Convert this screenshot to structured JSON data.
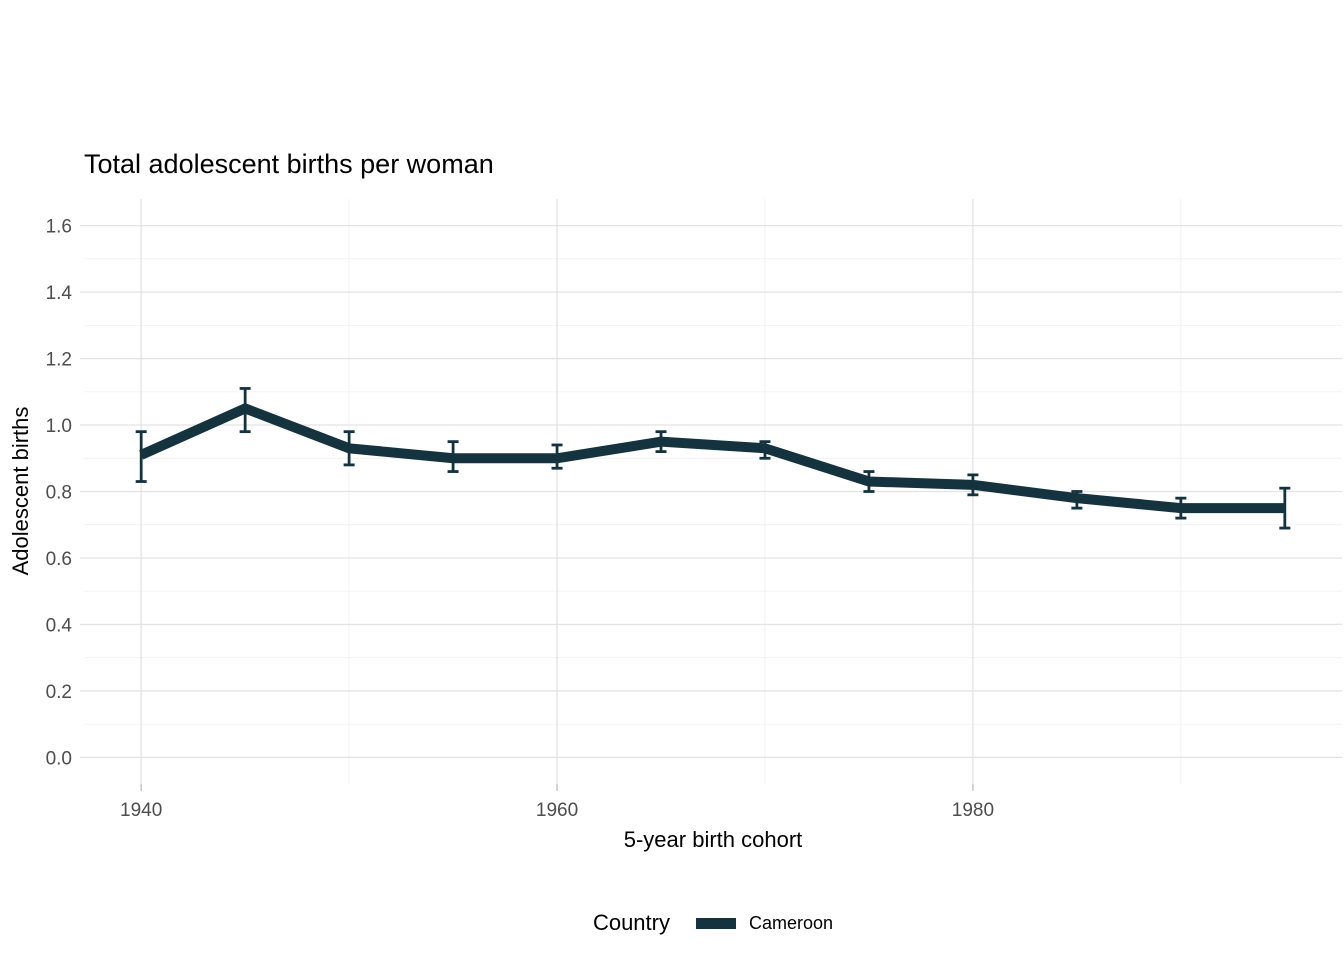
{
  "style": {
    "background": "#ffffff",
    "line_color": "#14333f",
    "grid_major_color": "#e3e3e3",
    "grid_minor_color": "#f1f1f1",
    "tick_mark_color": "#c6c6c6",
    "tick_label_color": "#4d4d4d",
    "title_color": "#000000"
  },
  "chart_data": {
    "type": "line",
    "title": "Total adolescent births per woman",
    "xlabel": "5-year birth cohort",
    "ylabel": "Adolescent births",
    "legend_title": "Country",
    "legend_position": "bottom",
    "grid": true,
    "error_bars": true,
    "x": [
      1940,
      1945,
      1950,
      1955,
      1960,
      1965,
      1970,
      1975,
      1980,
      1985,
      1990,
      1995
    ],
    "series": [
      {
        "name": "Cameroon",
        "color": "#14333f",
        "values": [
          0.91,
          1.05,
          0.93,
          0.9,
          0.9,
          0.95,
          0.93,
          0.83,
          0.82,
          0.78,
          0.75,
          0.75
        ],
        "ci_lower": [
          0.83,
          0.98,
          0.88,
          0.86,
          0.87,
          0.92,
          0.9,
          0.8,
          0.79,
          0.75,
          0.72,
          0.69
        ],
        "ci_upper": [
          0.98,
          1.11,
          0.98,
          0.95,
          0.94,
          0.98,
          0.95,
          0.86,
          0.85,
          0.8,
          0.78,
          0.81
        ]
      }
    ],
    "xlim": [
      1940,
      1995
    ],
    "ylim": [
      0,
      1.6
    ],
    "x_range_padded": [
      1937.25,
      1997.75
    ],
    "y_range_padded": [
      -0.08,
      1.68
    ],
    "x_ticks": [
      {
        "value": 1940,
        "label": "1940"
      },
      {
        "value": 1960,
        "label": "1960"
      },
      {
        "value": 1980,
        "label": "1980"
      }
    ],
    "y_ticks": [
      {
        "value": 0.0,
        "label": "0.0"
      },
      {
        "value": 0.2,
        "label": "0.2"
      },
      {
        "value": 0.4,
        "label": "0.4"
      },
      {
        "value": 0.6,
        "label": "0.6"
      },
      {
        "value": 0.8,
        "label": "0.8"
      },
      {
        "value": 1.0,
        "label": "1.0"
      },
      {
        "value": 1.2,
        "label": "1.2"
      },
      {
        "value": 1.4,
        "label": "1.4"
      },
      {
        "value": 1.6,
        "label": "1.6"
      }
    ],
    "x_minor_gridlines": [
      1950,
      1970,
      1990
    ],
    "y_minor_gridlines": [
      0.1,
      0.3,
      0.5,
      0.7,
      0.9,
      1.1,
      1.3,
      1.5
    ]
  }
}
